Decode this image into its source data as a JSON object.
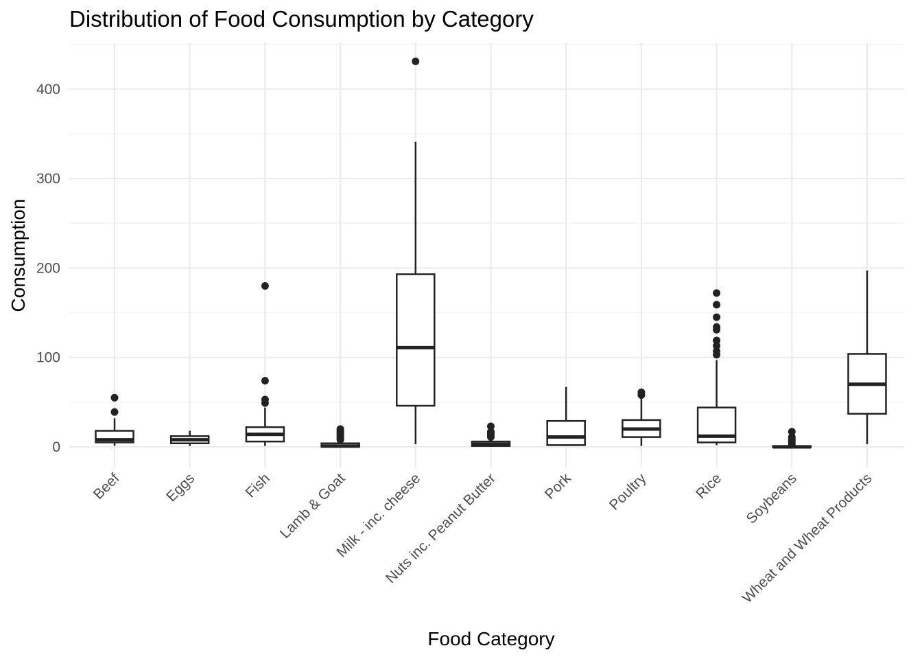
{
  "chart_data": {
    "type": "boxplot",
    "title": "Distribution of Food Consumption by Category",
    "xlabel": "Food Category",
    "ylabel": "Consumption",
    "ylim": [
      -8,
      450
    ],
    "yticks": [
      0,
      100,
      200,
      300,
      400
    ],
    "grid": true,
    "legend": "none",
    "categories": [
      "Beef",
      "Eggs",
      "Fish",
      "Lamb & Goat",
      "Milk - inc. cheese",
      "Nuts inc. Peanut Butter",
      "Pork",
      "Poultry",
      "Rice",
      "Soybeans",
      "Wheat and Wheat Products"
    ],
    "boxes": [
      {
        "category": "Beef",
        "min": 1,
        "q1": 5,
        "median": 8,
        "q3": 18,
        "max": 32,
        "outliers": [
          39,
          55
        ]
      },
      {
        "category": "Eggs",
        "min": 1,
        "q1": 4,
        "median": 8,
        "q3": 12,
        "max": 18,
        "outliers": []
      },
      {
        "category": "Fish",
        "min": 1,
        "q1": 6,
        "median": 14,
        "q3": 22,
        "max": 44,
        "outliers": [
          49,
          53,
          74,
          180
        ]
      },
      {
        "category": "Lamb & Goat",
        "min": 0,
        "q1": 0,
        "median": 1,
        "q3": 4,
        "max": 6,
        "outliers": [
          8,
          10,
          12,
          14,
          16,
          18,
          20
        ]
      },
      {
        "category": "Milk - inc. cheese",
        "min": 3,
        "q1": 46,
        "median": 111,
        "q3": 193,
        "max": 341,
        "outliers": [
          431
        ]
      },
      {
        "category": "Nuts inc. Peanut Butter",
        "min": 0,
        "q1": 1,
        "median": 3,
        "q3": 6,
        "max": 9,
        "outliers": [
          11,
          13,
          15,
          17,
          23
        ]
      },
      {
        "category": "Pork",
        "min": 1,
        "q1": 2,
        "median": 11,
        "q3": 29,
        "max": 67,
        "outliers": []
      },
      {
        "category": "Poultry",
        "min": 1,
        "q1": 11,
        "median": 20,
        "q3": 30,
        "max": 55,
        "outliers": [
          58,
          61
        ]
      },
      {
        "category": "Rice",
        "min": 2,
        "q1": 5,
        "median": 12,
        "q3": 44,
        "max": 97,
        "outliers": [
          103,
          107,
          113,
          119,
          131,
          134,
          145,
          159,
          172
        ]
      },
      {
        "category": "Soybeans",
        "min": 0,
        "q1": 0,
        "median": 0,
        "q3": 1,
        "max": 2,
        "outliers": [
          3,
          5,
          7,
          9,
          11,
          17
        ]
      },
      {
        "category": "Wheat and Wheat Products",
        "min": 3,
        "q1": 37,
        "median": 70,
        "q3": 104,
        "max": 197,
        "outliers": []
      }
    ]
  }
}
